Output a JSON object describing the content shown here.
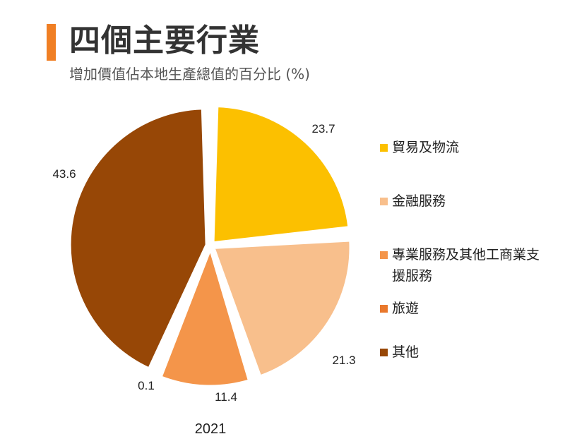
{
  "header": {
    "title": "四個主要行業",
    "subtitle": "增加價值佔本地生產總值的百分比 (%)"
  },
  "chart_data": {
    "type": "pie",
    "title": "四個主要行業",
    "subtitle": "增加價值佔本地生產總值的百分比 (%)",
    "caption": "2021",
    "series": [
      {
        "name": "貿易及物流",
        "value": 23.7,
        "label": "23.7",
        "color": "#fcc000"
      },
      {
        "name": "金融服務",
        "value": 21.3,
        "label": "21.3",
        "color": "#f8bf8c"
      },
      {
        "name": "專業服務及其他工商業支援服務",
        "value": 11.4,
        "label": "11.4",
        "color": "#f4954a"
      },
      {
        "name": "旅遊",
        "value": 0.1,
        "label": "0.1",
        "color": "#e9782c"
      },
      {
        "name": "其他",
        "value": 43.6,
        "label": "43.6",
        "color": "#974706"
      }
    ],
    "legend_position": "right"
  }
}
